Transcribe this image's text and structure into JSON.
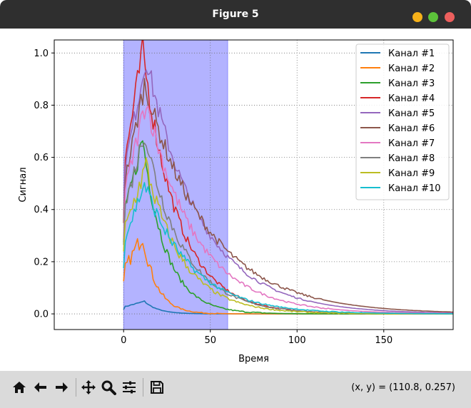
{
  "window": {
    "title": "Figure 5"
  },
  "toolbar": {
    "buttons": [
      {
        "name": "home-icon"
      },
      {
        "name": "back-icon"
      },
      {
        "name": "forward-icon"
      },
      {
        "name": "pan-icon"
      },
      {
        "name": "zoom-icon"
      },
      {
        "name": "configure-subplots-icon"
      },
      {
        "name": "save-icon"
      }
    ],
    "coords": "(x, y) = (110.8, 0.257)"
  },
  "chart_data": {
    "type": "line",
    "xlabel": "Время",
    "ylabel": "Сигнал",
    "xlim": [
      -40,
      190
    ],
    "ylim": [
      -0.06,
      1.05
    ],
    "xticks": [
      0,
      50,
      100,
      150
    ],
    "yticks": [
      0.0,
      0.2,
      0.4,
      0.6,
      0.8,
      1.0
    ],
    "grid": true,
    "grid_style": "dotted",
    "legend_position": "top-right",
    "highlight_span": {
      "x0": 0,
      "x1": 60,
      "color": "#b3b3ff"
    },
    "series": [
      {
        "name": "Канал #1",
        "color": "#1f77b4",
        "peak": 0.048,
        "peak_x": 12,
        "tail_end": 45,
        "noise": 0.002
      },
      {
        "name": "Канал #2",
        "color": "#ff7f0e",
        "peak": 0.3,
        "peak_x": 11,
        "tail_end": 55,
        "noise": 0.03
      },
      {
        "name": "Канал #3",
        "color": "#2ca02c",
        "peak": 0.67,
        "peak_x": 11,
        "tail_end": 85,
        "noise": 0.04
      },
      {
        "name": "Канал #4",
        "color": "#d62728",
        "peak": 1.01,
        "peak_x": 11,
        "tail_end": 100,
        "noise": 0.05
      },
      {
        "name": "Канал #5",
        "color": "#9467bd",
        "peak": 0.98,
        "peak_x": 13,
        "tail_end": 110,
        "noise": 0.04
      },
      {
        "name": "Канал #6",
        "color": "#8c564b",
        "peak": 0.88,
        "peak_x": 12,
        "tail_end": 115,
        "noise": 0.04
      },
      {
        "name": "Канал #7",
        "color": "#e377c2",
        "peak": 0.82,
        "peak_x": 13,
        "tail_end": 120,
        "noise": 0.04
      },
      {
        "name": "Канал #8",
        "color": "#7f7f7f",
        "peak": 0.7,
        "peak_x": 12,
        "tail_end": 125,
        "noise": 0.04
      },
      {
        "name": "Канал #9",
        "color": "#bcbd22",
        "peak": 0.57,
        "peak_x": 13,
        "tail_end": 130,
        "noise": 0.04
      },
      {
        "name": "Канал #10",
        "color": "#17becf",
        "peak": 0.5,
        "peak_x": 12,
        "tail_end": 140,
        "noise": 0.03
      }
    ]
  }
}
